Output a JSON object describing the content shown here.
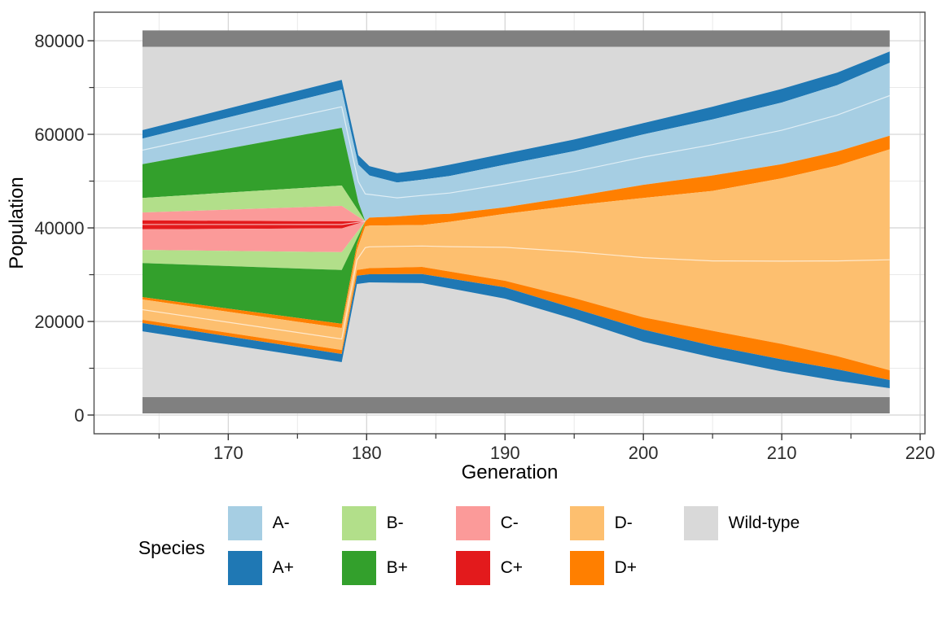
{
  "axes": {
    "x": {
      "title": "Generation",
      "range": [
        160.3,
        220.35
      ],
      "major": [
        {
          "v": 170,
          "label": "170"
        },
        {
          "v": 180,
          "label": "180"
        },
        {
          "v": 190,
          "label": "190"
        },
        {
          "v": 200,
          "label": "200"
        },
        {
          "v": 210,
          "label": "210"
        },
        {
          "v": 220,
          "label": "220"
        }
      ],
      "minor": [
        165,
        175,
        185,
        195,
        205,
        215
      ]
    },
    "y": {
      "title": "Population",
      "range": [
        -4000,
        86100
      ],
      "major": [
        {
          "v": 0,
          "label": "0"
        },
        {
          "v": 20000,
          "label": "20000"
        },
        {
          "v": 40000,
          "label": "40000"
        },
        {
          "v": 60000,
          "label": "60000"
        },
        {
          "v": 80000,
          "label": "80000"
        }
      ],
      "minor": [
        10000,
        30000,
        50000,
        70000
      ]
    }
  },
  "legend": {
    "title": "Species",
    "rows": [
      [
        {
          "label": "A-",
          "color": "#a6cee3"
        },
        {
          "label": "B-",
          "color": "#b2df8a"
        },
        {
          "label": "C-",
          "color": "#fb9a99"
        },
        {
          "label": "D-",
          "color": "#fdbf6f"
        },
        {
          "label": "Wild-type",
          "color": "#d9d9d9"
        }
      ],
      [
        {
          "label": "A+",
          "color": "#1f78b4"
        },
        {
          "label": "B+",
          "color": "#33a02c"
        },
        {
          "label": "C+",
          "color": "#e31a1c"
        },
        {
          "label": "D+",
          "color": "#ff7f00"
        }
      ]
    ]
  },
  "style": {
    "grid_major": "#d3d3d3",
    "grid_minor": "#e9e9e9",
    "panel_border": "#4d4d4d",
    "tick_color": "#333333",
    "tick_label_color": "#2b2b2b",
    "hairline": "rgba(255,255,255,0.65)"
  },
  "chart_data": {
    "type": "area",
    "subtype": "muller-plot",
    "xlabel": "Generation",
    "ylabel": "Population",
    "x_domain": [
      163.8,
      217.8
    ],
    "y_domain": [
      0,
      86100
    ],
    "grid": true,
    "legend_position": "bottom",
    "boundaries": {
      "T0": [
        [
          163.8,
          82200
        ],
        [
          217.8,
          82200
        ]
      ],
      "T1": [
        [
          163.8,
          78700
        ],
        [
          217.8,
          78700
        ]
      ],
      "T2": [
        [
          163.8,
          60900
        ],
        [
          178.2,
          71650
        ],
        [
          178.8,
          63500
        ],
        [
          179.4,
          55500
        ],
        [
          180.2,
          53200
        ],
        [
          182.2,
          51700
        ],
        [
          184,
          52400
        ],
        [
          186,
          53500
        ],
        [
          190,
          55900
        ],
        [
          195,
          58900
        ],
        [
          200,
          62400
        ],
        [
          205,
          65900
        ],
        [
          210,
          69700
        ],
        [
          214,
          73200
        ],
        [
          217.8,
          77700
        ]
      ],
      "T3": [
        [
          163.8,
          59100
        ],
        [
          178.2,
          69550
        ],
        [
          178.8,
          61400
        ],
        [
          179.4,
          53500
        ],
        [
          180.2,
          51200
        ],
        [
          182.2,
          49700
        ],
        [
          184,
          50300
        ],
        [
          186,
          51100
        ],
        [
          190,
          53500
        ],
        [
          195,
          56400
        ],
        [
          200,
          60000
        ],
        [
          205,
          63200
        ],
        [
          210,
          66800
        ],
        [
          214,
          70500
        ],
        [
          217.8,
          75300
        ]
      ],
      "T4pre": [
        [
          163.8,
          53600
        ],
        [
          178.2,
          61400
        ],
        [
          178.8,
          53500
        ],
        [
          179.4,
          45500
        ],
        [
          179.9,
          41400
        ]
      ],
      "T4": [
        [
          163.8,
          53600
        ],
        [
          178.2,
          61400
        ],
        [
          178.8,
          53500
        ],
        [
          179.4,
          45500
        ],
        [
          179.9,
          41400
        ],
        [
          180.2,
          42200
        ],
        [
          182,
          42400
        ],
        [
          184,
          42800
        ],
        [
          186,
          43000
        ],
        [
          190,
          44400
        ],
        [
          195,
          46700
        ],
        [
          200,
          49200
        ],
        [
          205,
          51200
        ],
        [
          210,
          53600
        ],
        [
          214,
          56300
        ],
        [
          217.8,
          59700
        ]
      ],
      "T5": [
        [
          163.8,
          46400
        ],
        [
          178.2,
          49050
        ],
        [
          179.9,
          41400
        ]
      ],
      "T6": [
        [
          163.8,
          43300
        ],
        [
          178.2,
          44700
        ],
        [
          179.9,
          41400
        ]
      ],
      "T7": [
        [
          163.8,
          41600
        ],
        [
          178.2,
          41400
        ],
        [
          179.9,
          41400
        ]
      ],
      "T8": [
        [
          163.8,
          39700
        ],
        [
          178.2,
          39900
        ],
        [
          179.9,
          41400
        ]
      ],
      "T9": [
        [
          163.8,
          35300
        ],
        [
          178.2,
          34800
        ],
        [
          179.9,
          41400
        ]
      ],
      "T10": [
        [
          163.8,
          32500
        ],
        [
          178.2,
          31000
        ],
        [
          179.9,
          41400
        ]
      ],
      "T11pre": [
        [
          163.8,
          25200
        ],
        [
          178.2,
          19500
        ],
        [
          179.3,
          36500
        ],
        [
          179.9,
          41400
        ]
      ],
      "T11": [
        [
          163.8,
          25200
        ],
        [
          178.2,
          19500
        ],
        [
          179.3,
          36500
        ],
        [
          179.9,
          41400
        ],
        [
          180.2,
          42200
        ],
        [
          182,
          42400
        ],
        [
          184,
          42800
        ],
        [
          186,
          43000
        ],
        [
          190,
          44400
        ],
        [
          195,
          46700
        ],
        [
          200,
          49200
        ],
        [
          205,
          51200
        ],
        [
          210,
          53600
        ],
        [
          214,
          56300
        ],
        [
          217.8,
          59700
        ]
      ],
      "T12": [
        [
          163.8,
          24700
        ],
        [
          178.2,
          18600
        ],
        [
          179.3,
          35300
        ],
        [
          179.9,
          40300
        ],
        [
          180.2,
          40500
        ],
        [
          182,
          40550
        ],
        [
          184,
          40600
        ],
        [
          186,
          41300
        ],
        [
          190,
          43000
        ],
        [
          195,
          44800
        ],
        [
          200,
          46400
        ],
        [
          205,
          47900
        ],
        [
          210,
          50600
        ],
        [
          214,
          53300
        ],
        [
          217.8,
          56800
        ]
      ],
      "T13": [
        [
          163.8,
          20350
        ],
        [
          178.2,
          13900
        ],
        [
          179.3,
          31000
        ],
        [
          180.2,
          31400
        ],
        [
          184,
          31650
        ],
        [
          190,
          28700
        ],
        [
          195,
          25000
        ],
        [
          200,
          20870
        ],
        [
          205,
          18000
        ],
        [
          210,
          15200
        ],
        [
          214,
          12600
        ],
        [
          217.8,
          9565
        ]
      ],
      "T14": [
        [
          163.8,
          19650
        ],
        [
          178.2,
          13050
        ],
        [
          179.3,
          29800
        ],
        [
          180.2,
          30100
        ],
        [
          184,
          30150
        ],
        [
          190,
          27300
        ],
        [
          195,
          22800
        ],
        [
          200,
          18260
        ],
        [
          205,
          14800
        ],
        [
          210,
          11900
        ],
        [
          214,
          9800
        ],
        [
          217.8,
          7478
        ]
      ],
      "T15": [
        [
          163.8,
          17900
        ],
        [
          178.2,
          11300
        ],
        [
          179.3,
          28000
        ],
        [
          180.2,
          28350
        ],
        [
          184,
          28200
        ],
        [
          190,
          24870
        ],
        [
          195,
          20500
        ],
        [
          200,
          15652
        ],
        [
          205,
          12300
        ],
        [
          210,
          9300
        ],
        [
          214,
          7300
        ],
        [
          217.8,
          5739
        ]
      ],
      "T16": [
        [
          163.8,
          3830
        ],
        [
          217.8,
          3830
        ]
      ],
      "T17": [
        [
          163.8,
          350
        ],
        [
          217.8,
          350
        ]
      ]
    },
    "bands": [
      {
        "name": "wild-type-top",
        "species": "Wild-type",
        "color": "#d9d9d9",
        "top": "T1",
        "bottom": "T2"
      },
      {
        "name": "wild-type-bottom",
        "species": "Wild-type",
        "color": "#d9d9d9",
        "top": "T15",
        "bottom": "T16"
      },
      {
        "name": "boundary-bar-top",
        "species": "boundary",
        "color": "#808080",
        "top": "T0",
        "bottom": "T1"
      },
      {
        "name": "boundary-bar-bottom",
        "species": "boundary",
        "color": "#808080",
        "top": "T16",
        "bottom": "T17"
      },
      {
        "name": "a-plus-top",
        "species": "A+",
        "color": "#1f78b4",
        "top": "T2",
        "bottom": "T3"
      },
      {
        "name": "a-minus",
        "species": "A-",
        "color": "#a6cee3",
        "top": "T3",
        "bottom": "T4",
        "hairline": 0.45
      },
      {
        "name": "b-plus-top",
        "species": "B+",
        "color": "#33a02c",
        "top": "T4pre",
        "bottom": "T5"
      },
      {
        "name": "b-minus-top",
        "species": "B-",
        "color": "#b2df8a",
        "top": "T5",
        "bottom": "T6"
      },
      {
        "name": "c-minus-top",
        "species": "C-",
        "color": "#fb9a99",
        "top": "T6",
        "bottom": "T7"
      },
      {
        "name": "c-plus",
        "species": "C+",
        "color": "#e31a1c",
        "top": "T7",
        "bottom": "T8",
        "hairline": 0.45
      },
      {
        "name": "c-minus-bottom",
        "species": "C-",
        "color": "#fb9a99",
        "top": "T8",
        "bottom": "T9"
      },
      {
        "name": "b-minus-bottom",
        "species": "B-",
        "color": "#b2df8a",
        "top": "T9",
        "bottom": "T10"
      },
      {
        "name": "b-plus-bottom",
        "species": "B+",
        "color": "#33a02c",
        "top": "T10",
        "bottom": "T11pre"
      },
      {
        "name": "d-plus-top",
        "species": "D+",
        "color": "#ff7f00",
        "top": "T11",
        "bottom": "T12"
      },
      {
        "name": "d-minus",
        "species": "D-",
        "color": "#fdbf6f",
        "top": "T12",
        "bottom": "T13",
        "hairline": 0.5
      },
      {
        "name": "d-plus-bottom",
        "species": "D+",
        "color": "#ff7f00",
        "top": "T13",
        "bottom": "T14"
      },
      {
        "name": "a-plus-bottom",
        "species": "A+",
        "color": "#1f78b4",
        "top": "T14",
        "bottom": "T15"
      }
    ]
  }
}
